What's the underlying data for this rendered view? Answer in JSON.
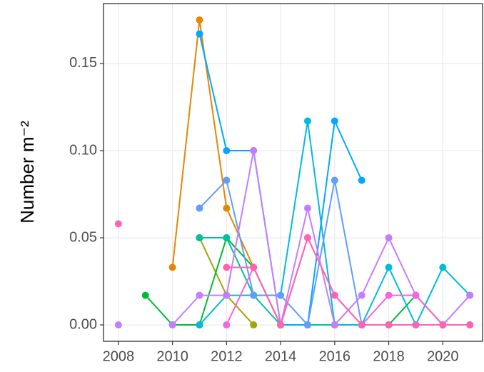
{
  "chart_data": {
    "type": "line",
    "ylabel": "Number m⁻²",
    "x": [
      2008,
      2009,
      2010,
      2011,
      2012,
      2013,
      2014,
      2015,
      2016,
      2017,
      2018,
      2019,
      2020,
      2021
    ],
    "series": [
      {
        "color": "#E58700",
        "values": [
          null,
          null,
          0.033,
          0.175,
          0.067,
          0.033,
          0,
          null,
          null,
          null,
          null,
          null,
          null,
          null
        ]
      },
      {
        "color": "#A3A500",
        "values": [
          null,
          null,
          null,
          0.05,
          0.017,
          0,
          null,
          null,
          null,
          null,
          null,
          null,
          null,
          null
        ]
      },
      {
        "color": "#00BA38",
        "values": [
          null,
          0.017,
          0,
          0,
          0.05,
          0.033,
          0,
          0,
          0,
          0,
          0,
          0.017,
          0,
          null
        ]
      },
      {
        "color": "#00C19F",
        "values": [
          null,
          null,
          null,
          0.05,
          0.05,
          0.017,
          0,
          0,
          0,
          0,
          0,
          0,
          0,
          0
        ]
      },
      {
        "color": "#00BCD8",
        "values": [
          null,
          null,
          null,
          0,
          0.017,
          0.017,
          0.017,
          0.117,
          0,
          0,
          0.033,
          0,
          0.033,
          0.017
        ]
      },
      {
        "color": "#00A9FF",
        "values": [
          null,
          null,
          null,
          0.167,
          0.1,
          0.1,
          0,
          0,
          0.117,
          0.083,
          null,
          null,
          null,
          null
        ]
      },
      {
        "color": "#619CFF",
        "values": [
          null,
          null,
          null,
          0.067,
          0.083,
          0.017,
          0.017,
          0,
          0.083,
          0,
          null,
          null,
          null,
          null
        ]
      },
      {
        "color": "#C77CFF",
        "values": [
          0,
          null,
          0,
          0.017,
          0.017,
          0.1,
          0,
          0.067,
          0,
          0.017,
          0.05,
          0.017,
          0,
          0.017
        ]
      },
      {
        "color": "#F564E3",
        "values": [
          null,
          null,
          null,
          null,
          0,
          0.033,
          0,
          0.05,
          0.017,
          0,
          0.017,
          0.017,
          0,
          0
        ]
      },
      {
        "color": "#FF64B0",
        "values": [
          0.058,
          null,
          null,
          null,
          0.033,
          0.033,
          0,
          0.05,
          0.017,
          0,
          0,
          0,
          0,
          0
        ]
      }
    ],
    "xlim": [
      2007.45,
      2021.47
    ],
    "xticks": [
      2008,
      2010,
      2012,
      2014,
      2016,
      2018,
      2020
    ],
    "ylim": [
      -0.0094,
      0.1844
    ],
    "yticks": [
      {
        "value": 0,
        "label": "0.00"
      },
      {
        "value": 0.05,
        "label": "0.05"
      },
      {
        "value": 0.1,
        "label": "0.10"
      },
      {
        "value": 0.15,
        "label": "0.15"
      }
    ],
    "grid": true
  }
}
